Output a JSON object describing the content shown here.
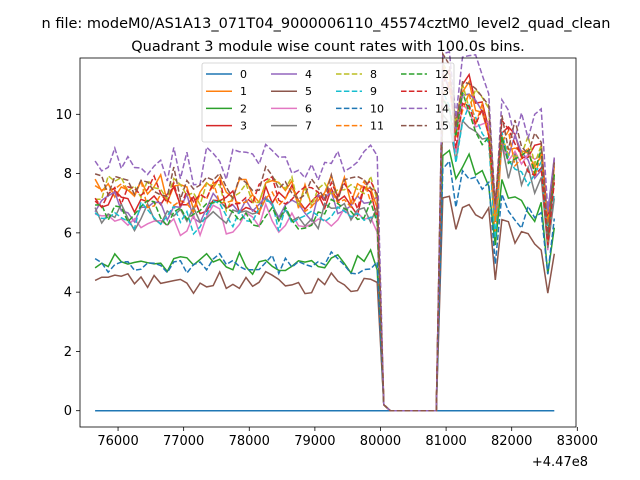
{
  "chart_data": {
    "type": "line",
    "suptitle": "n file: modeM0/AS1A13_071T04_9000006110_45574cztM0_level2_quad_clean",
    "title": "Quadrant 3 module wise count rates with 100.0s bins.",
    "xlabel": "",
    "ylabel": "",
    "x_offset_label": "+4.47e8",
    "xlim": [
      75420,
      82980
    ],
    "ylim": [
      -0.55,
      11.9
    ],
    "x_ticks": [
      76000,
      77000,
      78000,
      79000,
      80000,
      81000,
      82000,
      83000
    ],
    "y_ticks": [
      0,
      2,
      4,
      6,
      8,
      10
    ],
    "x_range": [
      75650,
      82650
    ],
    "bin": 100,
    "gap": [
      80050,
      80850
    ],
    "legend_position": "upper-center",
    "legend_columns": 4,
    "series": [
      {
        "name": "0",
        "color": "#1f77b4",
        "dash": "solid",
        "level": 0,
        "post": 0
      },
      {
        "name": "1",
        "color": "#ff7f0e",
        "dash": "solid",
        "level": 7.4,
        "post": 9.0
      },
      {
        "name": "2",
        "color": "#2ca02c",
        "dash": "solid",
        "level": 5.0,
        "post": 7.3
      },
      {
        "name": "3",
        "color": "#d62728",
        "dash": "solid",
        "level": 7.0,
        "post": 9.3
      },
      {
        "name": "4",
        "color": "#9467bd",
        "dash": "solid",
        "level": 6.9,
        "post": 9.2
      },
      {
        "name": "5",
        "color": "#8c564b",
        "dash": "solid",
        "level": 4.3,
        "post": 6.2
      },
      {
        "name": "6",
        "color": "#e377c2",
        "dash": "solid",
        "level": 6.4,
        "post": 8.7
      },
      {
        "name": "7",
        "color": "#7f7f7f",
        "dash": "solid",
        "level": 6.6,
        "post": 8.6
      },
      {
        "name": "8",
        "color": "#bcbd22",
        "dash": "dashed",
        "level": 7.4,
        "post": 9.3
      },
      {
        "name": "9",
        "color": "#17becf",
        "dash": "dashed",
        "level": 6.5,
        "post": 8.5
      },
      {
        "name": "10",
        "color": "#1f77b4",
        "dash": "dashed",
        "level": 4.9,
        "post": 6.9
      },
      {
        "name": "11",
        "color": "#ff7f0e",
        "dash": "dashed",
        "level": 7.2,
        "post": 9.2
      },
      {
        "name": "12",
        "color": "#2ca02c",
        "dash": "dashed",
        "level": 6.7,
        "post": 8.9
      },
      {
        "name": "13",
        "color": "#d62728",
        "dash": "dashed",
        "level": 7.3,
        "post": 9.2
      },
      {
        "name": "14",
        "color": "#9467bd",
        "dash": "dashed",
        "level": 8.3,
        "post": 10.2
      },
      {
        "name": "15",
        "color": "#8c564b",
        "dash": "dashed",
        "level": 7.6,
        "post": 9.6
      }
    ]
  }
}
